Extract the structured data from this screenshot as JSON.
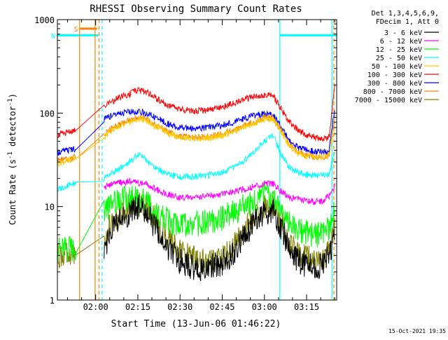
{
  "chart_data": {
    "type": "line",
    "title": "RHESSI Observing Summary Count Rates",
    "xlabel": "Start Time (13-Jun-06 01:46:22)",
    "ylabel_main": "Count Rate (s",
    "ylabel_sup1": "-1",
    "ylabel_mid": " detector",
    "ylabel_sup2": "-1",
    "ylabel_end": ")",
    "y_scale": "log",
    "ylim": [
      1,
      1000
    ],
    "xlim_minutes": [
      106.4,
      205.7
    ],
    "x_ticks": [
      {
        "label": "02:00",
        "minute": 120
      },
      {
        "label": "02:15",
        "minute": 135
      },
      {
        "label": "02:30",
        "minute": 150
      },
      {
        "label": "02:45",
        "minute": 165
      },
      {
        "label": "03:00",
        "minute": 180
      },
      {
        "label": "03:15",
        "minute": 195
      }
    ],
    "y_ticks": [
      {
        "label": "1",
        "value": 1
      },
      {
        "label": "10",
        "value": 10
      },
      {
        "label": "100",
        "value": 100
      },
      {
        "label": "1000",
        "value": 1000
      }
    ],
    "legend_header": [
      "Det 1,3,4,5,6,9,",
      "FDecim 1, Att 0"
    ],
    "legend_position": "right",
    "bars": [
      {
        "label": "S",
        "start": 114.5,
        "end": 120.5,
        "color": "#ff8000",
        "value": 800
      },
      {
        "label": "N",
        "start": 106.4,
        "end": 121.0,
        "color": "#00ffff",
        "value": 680
      },
      {
        "label": "",
        "start": 185.5,
        "end": 205.7,
        "color": "#00ffff",
        "value": 680
      }
    ],
    "vertical_markers": [
      {
        "minute": 114.3,
        "style": "solid",
        "color": "#ff8000"
      },
      {
        "minute": 119.8,
        "style": "solid",
        "color": "#ff8000"
      },
      {
        "minute": 121.2,
        "style": "dashed",
        "color": "#ff8000"
      },
      {
        "minute": 122.3,
        "style": "dashed",
        "color": "#00ffff"
      },
      {
        "minute": 185.5,
        "style": "solid",
        "color": "#00ffff"
      },
      {
        "minute": 204.0,
        "style": "solid",
        "color": "#00ffff"
      },
      {
        "minute": 204.7,
        "style": "dashed",
        "color": "#ff8000"
      }
    ],
    "gap": [
      114.3,
      123.0
    ],
    "x": [
      106.4,
      110,
      113,
      114.3,
      123,
      125,
      128,
      132,
      135,
      138,
      142,
      146,
      150,
      155,
      160,
      165,
      170,
      175,
      180,
      183,
      186,
      189,
      192,
      195,
      198,
      201,
      203,
      205
    ],
    "series": [
      {
        "name": "3 - 6 keV",
        "color": "#000000",
        "values": [
          null,
          null,
          null,
          null,
          3.5,
          5,
          7,
          8.5,
          10,
          8.5,
          5.5,
          3.5,
          2.6,
          2.2,
          2.2,
          2.5,
          3.5,
          6,
          8.5,
          9,
          6,
          3.5,
          2.6,
          2.4,
          2.3,
          2.3,
          3,
          5
        ]
      },
      {
        "name": "6 - 12 keV",
        "color": "#ff00ff",
        "values": [
          null,
          null,
          null,
          null,
          16,
          17,
          18,
          18.5,
          18,
          17.5,
          15,
          13.5,
          12.5,
          12.5,
          13,
          13.5,
          14.5,
          16,
          17.5,
          17.5,
          14.5,
          12.5,
          12,
          11.5,
          11.3,
          11.5,
          13,
          17
        ]
      },
      {
        "name": "12 - 25 keV",
        "color": "#00ff00",
        "values": [
          3.5,
          3.5,
          3.5,
          null,
          9,
          10,
          11.5,
          12.5,
          12,
          11,
          8.5,
          7,
          6.5,
          6.5,
          6.8,
          7.5,
          9,
          11,
          13,
          12.5,
          9,
          6.5,
          5.5,
          5.2,
          5,
          5,
          6,
          10
        ]
      },
      {
        "name": "25 - 50 keV",
        "color": "#00ffff",
        "values": [
          15,
          17,
          18,
          null,
          20,
          22,
          25,
          30,
          36,
          31,
          25,
          22,
          21,
          21,
          21.5,
          23,
          27,
          35,
          50,
          58,
          36,
          26,
          23,
          22,
          21.5,
          21.5,
          22,
          40
        ]
      },
      {
        "name": "50 - 100 keV",
        "color": "#ffcc00",
        "values": [
          29,
          31,
          33,
          null,
          55,
          63,
          72,
          80,
          86,
          82,
          70,
          60,
          55,
          53,
          54,
          58,
          65,
          75,
          85,
          85,
          62,
          44,
          37,
          35,
          34,
          34,
          35,
          68
        ]
      },
      {
        "name": "100 - 300 keV",
        "color": "#ff0000",
        "values": [
          58,
          62,
          67,
          null,
          115,
          128,
          145,
          160,
          175,
          168,
          140,
          118,
          110,
          105,
          108,
          116,
          130,
          148,
          157,
          154,
          110,
          80,
          65,
          58,
          55,
          53,
          56,
          200
        ]
      },
      {
        "name": "300 - 800 keV",
        "color": "#0000ff",
        "values": [
          38,
          40,
          42,
          null,
          85,
          92,
          98,
          103,
          103,
          100,
          88,
          76,
          70,
          68,
          70,
          74,
          82,
          92,
          98,
          96,
          70,
          50,
          43,
          40,
          39,
          38,
          40,
          110
        ]
      },
      {
        "name": "800 - 7000 keV",
        "color": "#ff8000",
        "values": [
          31,
          32,
          34,
          null,
          60,
          66,
          75,
          83,
          90,
          85,
          72,
          62,
          56,
          55,
          56,
          60,
          67,
          78,
          90,
          90,
          65,
          45,
          38,
          35,
          34,
          34,
          36,
          90
        ]
      },
      {
        "name": "7000 - 15000 keV",
        "color": "#808000",
        "values": [
          3,
          3,
          3,
          null,
          4.5,
          6,
          8,
          10,
          11,
          9.5,
          6.5,
          4.5,
          3.4,
          2.8,
          2.6,
          2.8,
          4,
          7,
          10,
          10.5,
          7,
          4,
          3,
          2.8,
          2.7,
          2.6,
          3.5,
          6
        ]
      }
    ]
  },
  "footer_timestamp": "15-Oct-2021 19:35"
}
